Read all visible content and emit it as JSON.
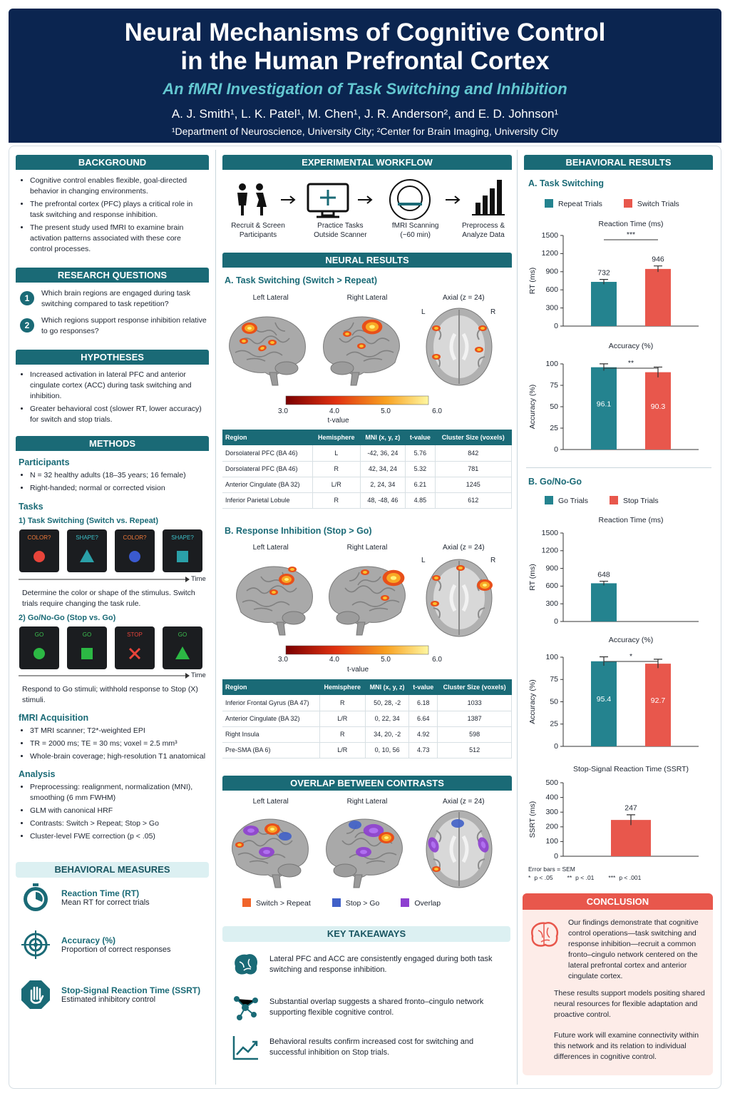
{
  "header": {
    "title_lines": [
      "Neural Mechanisms of Cognitive Control",
      "in the Human Prefrontal Cortex"
    ],
    "subtitle": "An fMRI Investigation of Task Switching and Inhibition",
    "authors": "A. J. Smith¹, L. K. Patel¹, M. Chen¹, J. R. Anderson², and E. D. Johnson¹",
    "affiliations": "¹Department of Neuroscience, University City; ²Center for Brain Imaging, University City"
  },
  "background": {
    "heading": "BACKGROUND",
    "bullets": [
      "Cognitive control enables flexible, goal-directed behavior in changing environments.",
      "The prefrontal cortex (PFC) plays a critical role in task switching and response inhibition.",
      "The present study used fMRI to examine brain activation patterns associated with these core control processes."
    ]
  },
  "research_questions": {
    "heading": "RESEARCH QUESTIONS",
    "items": [
      {
        "number": 1,
        "text": "Which brain regions are engaged during task switching compared to task repetition?"
      },
      {
        "number": 2,
        "text": "Which regions support response inhibition relative to go responses?"
      }
    ]
  },
  "hypotheses": {
    "heading": "HYPOTHESES",
    "bullets": [
      "Increased activation in lateral PFC and anterior cingulate cortex (ACC) during task switching and inhibition.",
      "Greater behavioral cost (slower RT, lower accuracy) for switch and stop trials."
    ]
  },
  "methods": {
    "heading": "METHODS",
    "participants": {
      "heading": "Participants",
      "bullets": [
        "N = 32 healthy adults (18–35 years; 16 female)",
        "Right-handed; normal or corrected vision"
      ]
    },
    "tasks": {
      "heading": "Tasks",
      "task_switching": {
        "heading": "1) Task Switching (Switch vs. Repeat)",
        "trials": [
          {
            "cue": "COLOR?",
            "cue_color": "#f07a3a",
            "shape": "circle",
            "color": "#e8443a"
          },
          {
            "cue": "SHAPE?",
            "cue_color": "#3cc0c8",
            "shape": "triangle",
            "color": "#2aa0a8"
          },
          {
            "cue": "COLOR?",
            "cue_color": "#f07a3a",
            "shape": "circle",
            "color": "#3a5ad0"
          },
          {
            "cue": "SHAPE?",
            "cue_color": "#3cc0c8",
            "shape": "square",
            "color": "#2aa0a8"
          }
        ],
        "time_label": "Time",
        "description": "Determine the color or shape of the stimulus. Switch trials require changing the task rule."
      },
      "go_nogo": {
        "heading": "2) Go/No-Go (Stop vs. Go)",
        "trials": [
          {
            "cue": "GO",
            "cue_color": "#3cc050",
            "shape": "circle",
            "color": "#2cb844"
          },
          {
            "cue": "GO",
            "cue_color": "#3cc050",
            "shape": "square",
            "color": "#2cb844"
          },
          {
            "cue": "STOP",
            "cue_color": "#e8443a",
            "shape": "cross",
            "color": "#e8443a"
          },
          {
            "cue": "GO",
            "cue_color": "#3cc050",
            "shape": "triangle",
            "color": "#2cb844"
          }
        ],
        "time_label": "Time",
        "description": "Respond to Go stimuli; withhold response to Stop (X) stimuli."
      }
    },
    "fmri": {
      "heading": "fMRI Acquisition",
      "bullets": [
        "3T MRI scanner; T2*-weighted EPI",
        "TR = 2000 ms; TE = 30 ms; voxel = 2.5 mm³",
        "Whole-brain coverage; high-resolution T1 anatomical"
      ]
    },
    "analysis": {
      "heading": "Analysis",
      "bullets": [
        "Preprocessing: realignment, normalization (MNI), smoothing (6 mm FWHM)",
        "GLM with canonical HRF",
        "Contrasts: Switch > Repeat; Stop > Go",
        "Cluster-level FWE correction (p < .05)"
      ]
    }
  },
  "behavioral_measures": {
    "heading": "BEHAVIORAL MEASURES",
    "items": [
      {
        "title": "Reaction Time (RT)",
        "description": "Mean RT for correct trials"
      },
      {
        "title": "Accuracy (%)",
        "description": "Proportion of correct responses"
      },
      {
        "title": "Stop-Signal Reaction Time (SSRT)",
        "description": "Estimated inhibitory control"
      }
    ]
  },
  "workflow": {
    "heading": "EXPERIMENTAL WORKFLOW",
    "steps": [
      "Recruit & Screen Participants",
      "Practice Tasks Outside Scanner",
      "fMRI Scanning (~60 min)",
      "Preprocess & Analyze Data"
    ]
  },
  "neural_results": {
    "heading": "NEURAL RESULTS",
    "task_switching": {
      "heading": "A. Task Switching (Switch > Repeat)",
      "views": [
        "Left Lateral",
        "Right Lateral",
        "Axial (z = 24)"
      ],
      "axial_left": "L",
      "axial_right": "R",
      "colorbar_ticks": [
        "3.0",
        "4.0",
        "5.0",
        "6.0"
      ],
      "colorbar_label": "t-value",
      "table": {
        "columns": [
          "Region",
          "Hemisphere",
          "MNI (x, y, z)",
          "t-value",
          "Cluster Size (voxels)"
        ],
        "rows": [
          [
            "Dorsolateral PFC (BA 46)",
            "L",
            "-42, 36, 24",
            "5.76",
            "842"
          ],
          [
            "Dorsolateral PFC (BA 46)",
            "R",
            "42, 34, 24",
            "5.32",
            "781"
          ],
          [
            "Anterior Cingulate (BA 32)",
            "L/R",
            "2, 24, 34",
            "6.21",
            "1245"
          ],
          [
            "Inferior Parietal Lobule",
            "R",
            "48, -48, 46",
            "4.85",
            "612"
          ]
        ]
      }
    },
    "response_inhibition": {
      "heading": "B. Response Inhibition (Stop > Go)",
      "views": [
        "Left Lateral",
        "Right Lateral",
        "Axial (z = 24)"
      ],
      "axial_left": "L",
      "axial_right": "R",
      "colorbar_ticks": [
        "3.0",
        "4.0",
        "5.0",
        "6.0"
      ],
      "colorbar_label": "t-value",
      "table": {
        "columns": [
          "Region",
          "Hemisphere",
          "MNI (x, y, z)",
          "t-value",
          "Cluster Size (voxels)"
        ],
        "rows": [
          [
            "Inferior Frontal Gyrus (BA 47)",
            "R",
            "50, 28, -2",
            "6.18",
            "1033"
          ],
          [
            "Anterior Cingulate (BA 32)",
            "L/R",
            "0, 22, 34",
            "6.64",
            "1387"
          ],
          [
            "Right Insula",
            "R",
            "34, 20, -2",
            "4.92",
            "598"
          ],
          [
            "Pre-SMA (BA 6)",
            "L/R",
            "0, 10, 56",
            "4.73",
            "512"
          ]
        ]
      }
    }
  },
  "overlap": {
    "heading": "OVERLAP BETWEEN CONTRASTS",
    "views": [
      "Left Lateral",
      "Right Lateral",
      "Axial (z = 24)"
    ],
    "legend": [
      {
        "name": "Switch > Repeat",
        "color": "#f0642a"
      },
      {
        "name": "Stop > Go",
        "color": "#4060c8"
      },
      {
        "name": "Overlap",
        "color": "#8e3fd0"
      }
    ]
  },
  "key_takeaways": {
    "heading": "KEY TAKEAWAYS",
    "items": [
      "Lateral PFC and ACC are consistently engaged during both task switching and response inhibition.",
      "Substantial overlap suggests a shared fronto–cingulo network supporting flexible cognitive control.",
      "Behavioral results confirm increased cost for switching and successful inhibition on Stop trials."
    ]
  },
  "behavioral_results": {
    "heading": "BEHAVIORAL RESULTS",
    "task_switching_heading": "A. Task Switching",
    "go_nogo_heading": "B. Go/No-Go",
    "footnote": "Error bars = SEM",
    "significance_legend": [
      {
        "symbol": "*",
        "text": "p < .05"
      },
      {
        "symbol": "**",
        "text": "p < .01"
      },
      {
        "symbol": "***",
        "text": "p < .001"
      }
    ]
  },
  "chart_data": [
    {
      "type": "bar",
      "title": "Reaction Time (ms)",
      "ylabel": "RT (ms)",
      "ylim": [
        0,
        1500
      ],
      "yticks": [
        0,
        300,
        600,
        900,
        1200,
        1500
      ],
      "value_label_position": "above",
      "significance": "***",
      "series": [
        {
          "name": "Repeat Trials",
          "color": "#24838f",
          "values": [
            732
          ],
          "errors": [
            40
          ]
        },
        {
          "name": "Switch Trials",
          "color": "#e8574c",
          "values": [
            946
          ],
          "errors": [
            50
          ]
        }
      ]
    },
    {
      "type": "bar",
      "title": "Accuracy (%)",
      "ylabel": "Accuracy (%)",
      "ylim": [
        0,
        100
      ],
      "yticks": [
        0,
        25,
        50,
        75,
        100
      ],
      "value_label_position": "inside",
      "significance": "**",
      "series": [
        {
          "color": "#24838f",
          "values": [
            96.1
          ],
          "errors": [
            4
          ]
        },
        {
          "color": "#e8574c",
          "values": [
            90.3
          ],
          "errors": [
            6
          ]
        }
      ]
    },
    {
      "type": "bar",
      "title": "Reaction Time (ms)",
      "ylabel": "RT (ms)",
      "ylim": [
        0,
        1500
      ],
      "yticks": [
        0,
        300,
        600,
        900,
        1200,
        1500
      ],
      "value_label_position": "above",
      "series": [
        {
          "name": "Go Trials",
          "color": "#24838f",
          "values": [
            648
          ],
          "errors": [
            35
          ]
        },
        {
          "name": "Stop Trials",
          "color": "#e8574c",
          "values": [
            null
          ],
          "errors": [
            null
          ]
        }
      ]
    },
    {
      "type": "bar",
      "title": "Accuracy (%)",
      "ylabel": "Accuracy (%)",
      "ylim": [
        0,
        100
      ],
      "yticks": [
        0,
        25,
        50,
        75,
        100
      ],
      "value_label_position": "inside",
      "significance": "*",
      "series": [
        {
          "color": "#24838f",
          "values": [
            95.4
          ],
          "errors": [
            5
          ]
        },
        {
          "color": "#e8574c",
          "values": [
            92.7
          ],
          "errors": [
            5
          ]
        }
      ]
    },
    {
      "type": "bar",
      "title": "Stop-Signal Reaction Time (SSRT)",
      "ylabel": "SSRT (ms)",
      "ylim": [
        0,
        500
      ],
      "yticks": [
        0,
        100,
        200,
        300,
        400,
        500
      ],
      "value_label_position": "above",
      "series": [
        {
          "color": "#e8574c",
          "values": [
            247
          ],
          "errors": [
            35
          ]
        }
      ]
    }
  ],
  "conclusion": {
    "heading": "CONCLUSION",
    "paragraphs": [
      "Our findings demonstrate that cognitive control operations—task switching and response inhibition—recruit a common fronto–cingulo network centered on the lateral prefrontal cortex and anterior cingulate cortex.",
      "These results support models positing shared neural resources for flexible adaptation and proactive control.",
      "Future work will examine connectivity within this network and its relation to individual differences in cognitive control."
    ]
  }
}
